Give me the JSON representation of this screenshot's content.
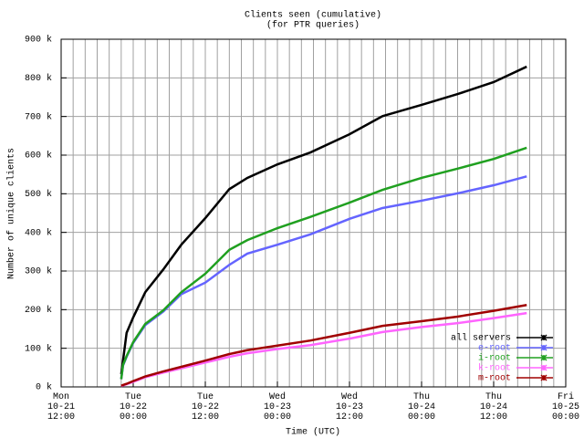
{
  "chart_data": {
    "type": "line",
    "title": "Clients seen (cumulative)",
    "subtitle": "(for PTR queries)",
    "x_label": "Time (UTC)",
    "y_label": "Number of unique clients",
    "x": [
      10,
      10.3,
      10.9,
      12,
      14,
      17,
      20,
      24,
      28,
      31,
      36,
      41.5,
      48,
      53.5,
      60,
      66,
      72,
      77.5
    ],
    "series": [
      {
        "name": "all servers",
        "color": "#000000",
        "values": [
          33000,
          68000,
          140000,
          180000,
          245000,
          304000,
          368000,
          437000,
          512000,
          541000,
          576000,
          607000,
          654000,
          701000,
          730000,
          758000,
          789000,
          829000
        ]
      },
      {
        "name": "e-root",
        "color": "#6464ff",
        "values": [
          20000,
          55000,
          78000,
          114000,
          160000,
          195000,
          240000,
          270000,
          316000,
          345000,
          368000,
          395000,
          435000,
          463000,
          482000,
          501000,
          522000,
          545000
        ]
      },
      {
        "name": "i-root",
        "color": "#20a020",
        "values": [
          20000,
          57000,
          80000,
          116000,
          163000,
          198000,
          245000,
          293000,
          355000,
          380000,
          411000,
          440000,
          477000,
          510000,
          541000,
          565000,
          590000,
          619000
        ]
      },
      {
        "name": "k-root",
        "color": "#ff64ff",
        "values": [
          2000,
          4000,
          7000,
          13000,
          25000,
          37000,
          48000,
          63000,
          78000,
          87000,
          98000,
          108000,
          125000,
          142000,
          155000,
          165000,
          178000,
          191000
        ]
      },
      {
        "name": "m-root",
        "color": "#a00000",
        "values": [
          3000,
          5000,
          8000,
          15000,
          27000,
          40000,
          52000,
          68000,
          85000,
          95000,
          107000,
          120000,
          140000,
          158000,
          170000,
          182000,
          197000,
          212000
        ]
      }
    ],
    "xlim": [
      0,
      84
    ],
    "xticks": [
      {
        "value": 0,
        "label": "Mon\n10-21\n12:00"
      },
      {
        "value": 12,
        "label": "Tue\n10-22\n00:00"
      },
      {
        "value": 24,
        "label": "Tue\n10-22\n12:00"
      },
      {
        "value": 36,
        "label": "Wed\n10-23\n00:00"
      },
      {
        "value": 48,
        "label": "Wed\n10-23\n12:00"
      },
      {
        "value": 60,
        "label": "Thu\n10-24\n00:00"
      },
      {
        "value": 72,
        "label": "Thu\n10-24\n12:00"
      },
      {
        "value": 84,
        "label": "Fri\n10-25\n00:00"
      }
    ],
    "ylim": [
      0,
      900000
    ],
    "yticks": [
      {
        "value": 0,
        "label": "0 k"
      },
      {
        "value": 100000,
        "label": "100 k"
      },
      {
        "value": 200000,
        "label": "200 k"
      },
      {
        "value": 300000,
        "label": "300 k"
      },
      {
        "value": 400000,
        "label": "400 k"
      },
      {
        "value": 500000,
        "label": "500 k"
      },
      {
        "value": 600000,
        "label": "600 k"
      },
      {
        "value": 700000,
        "label": "700 k"
      },
      {
        "value": 800000,
        "label": "800 k"
      },
      {
        "value": 900000,
        "label": "900 k"
      }
    ],
    "grid": true,
    "legend": "lower right"
  }
}
